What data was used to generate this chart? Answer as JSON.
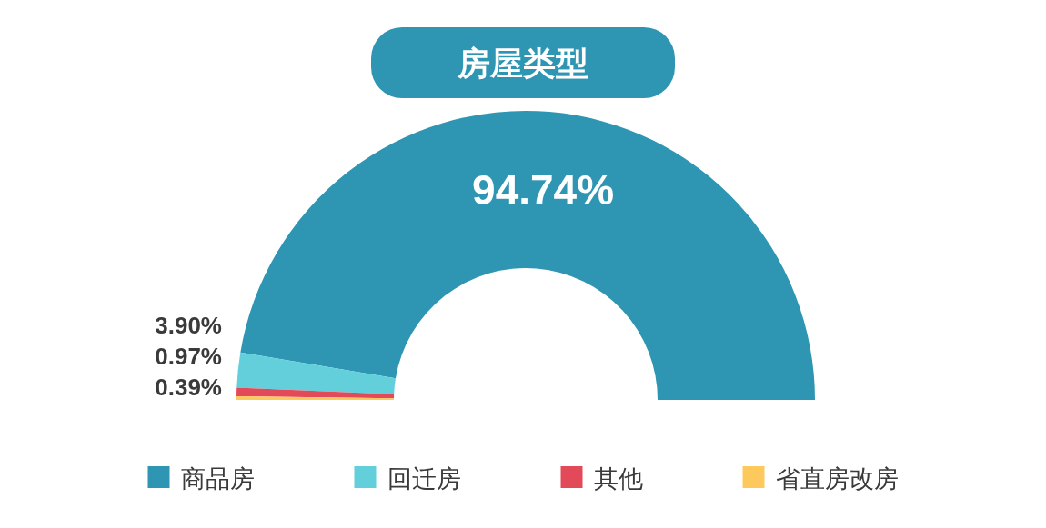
{
  "chart_data": {
    "type": "donut",
    "title": "房屋类型",
    "categories": [
      "商品房",
      "回迁房",
      "其他",
      "省直房改房"
    ],
    "values": [
      94.74,
      3.9,
      0.97,
      0.39
    ],
    "colors": [
      "#2e96b3",
      "#63cfdb",
      "#e34a59",
      "#fec95c"
    ],
    "value_labels": [
      "94.74%",
      "3.90%",
      "0.97%",
      "0.39%"
    ],
    "legend": "bottom"
  }
}
